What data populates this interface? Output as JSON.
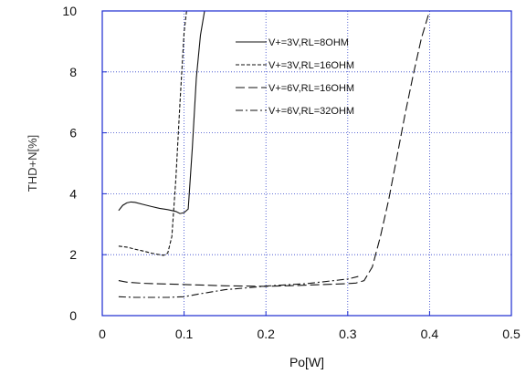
{
  "chart_data": {
    "type": "line",
    "title": "",
    "xlabel": "Po[W]",
    "ylabel": "THD+N[%]",
    "xlim": [
      0,
      0.5
    ],
    "ylim": [
      0,
      10
    ],
    "xticks": [
      0,
      0.1,
      0.2,
      0.3,
      0.4,
      0.5
    ],
    "xtick_labels": [
      "0",
      "0.1",
      "0.2",
      "0.3",
      "0.4",
      "0.5"
    ],
    "yticks": [
      0,
      2,
      4,
      6,
      8,
      10
    ],
    "ytick_labels": [
      "0",
      "2",
      "4",
      "6",
      "8",
      "10"
    ],
    "grid": true,
    "grid_style": "dotted",
    "grid_color": "#3344cc",
    "frame_color": "#1a2ad0",
    "legend_position": "top-right",
    "series": [
      {
        "name": "V+=3V,RL=8OHM",
        "dash": "solid",
        "points": [
          [
            0.02,
            3.45
          ],
          [
            0.025,
            3.62
          ],
          [
            0.03,
            3.7
          ],
          [
            0.035,
            3.73
          ],
          [
            0.04,
            3.72
          ],
          [
            0.05,
            3.65
          ],
          [
            0.06,
            3.58
          ],
          [
            0.07,
            3.52
          ],
          [
            0.08,
            3.48
          ],
          [
            0.09,
            3.42
          ],
          [
            0.095,
            3.35
          ],
          [
            0.1,
            3.38
          ],
          [
            0.105,
            3.5
          ],
          [
            0.11,
            5.5
          ],
          [
            0.115,
            7.8
          ],
          [
            0.12,
            9.2
          ],
          [
            0.125,
            10
          ]
        ]
      },
      {
        "name": "V+=3V,RL=16OHM",
        "dash": "4,2",
        "points": [
          [
            0.02,
            2.28
          ],
          [
            0.03,
            2.25
          ],
          [
            0.04,
            2.18
          ],
          [
            0.05,
            2.12
          ],
          [
            0.06,
            2.05
          ],
          [
            0.07,
            2.0
          ],
          [
            0.075,
            1.98
          ],
          [
            0.08,
            2.05
          ],
          [
            0.085,
            2.6
          ],
          [
            0.09,
            4.5
          ],
          [
            0.095,
            7.0
          ],
          [
            0.1,
            9.3
          ],
          [
            0.103,
            10
          ]
        ]
      },
      {
        "name": "V+=6V,RL=16OHM",
        "dash": "10,4",
        "points": [
          [
            0.02,
            1.15
          ],
          [
            0.03,
            1.1
          ],
          [
            0.05,
            1.06
          ],
          [
            0.1,
            1.02
          ],
          [
            0.15,
            0.98
          ],
          [
            0.2,
            0.96
          ],
          [
            0.25,
            1.0
          ],
          [
            0.3,
            1.05
          ],
          [
            0.31,
            1.07
          ],
          [
            0.32,
            1.15
          ],
          [
            0.33,
            1.6
          ],
          [
            0.34,
            2.6
          ],
          [
            0.35,
            3.8
          ],
          [
            0.36,
            5.2
          ],
          [
            0.37,
            6.6
          ],
          [
            0.38,
            7.9
          ],
          [
            0.39,
            9.1
          ],
          [
            0.4,
            10
          ]
        ]
      },
      {
        "name": "V+=6V,RL=32OHM",
        "dash": "8,3,2,3",
        "points": [
          [
            0.02,
            0.62
          ],
          [
            0.04,
            0.6
          ],
          [
            0.06,
            0.6
          ],
          [
            0.08,
            0.6
          ],
          [
            0.1,
            0.62
          ],
          [
            0.12,
            0.72
          ],
          [
            0.15,
            0.85
          ],
          [
            0.18,
            0.92
          ],
          [
            0.2,
            0.97
          ],
          [
            0.25,
            1.05
          ],
          [
            0.3,
            1.2
          ],
          [
            0.315,
            1.3
          ]
        ]
      }
    ]
  }
}
